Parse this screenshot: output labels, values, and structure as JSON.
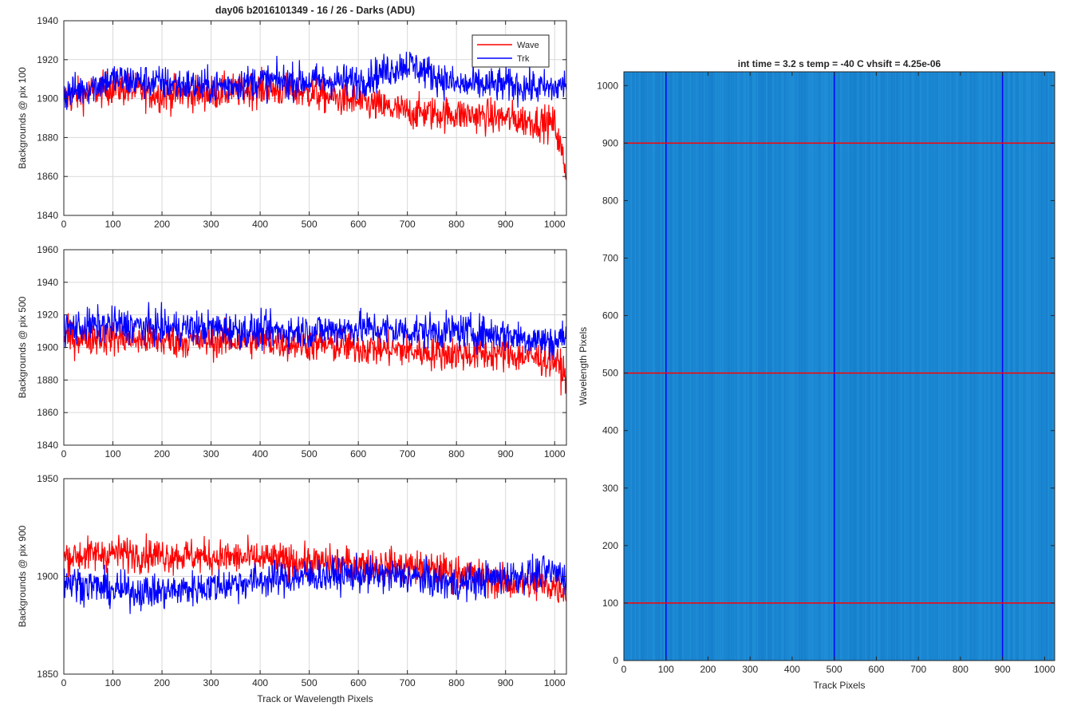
{
  "figure_title": "day06 b2016101349 - 16 / 26 - Darks (ADU)",
  "chart_data": [
    {
      "type": "line",
      "ylabel": "Backgrounds @ pix 100",
      "xlabel": "",
      "xlim": [
        0,
        1024
      ],
      "ylim": [
        1840,
        1940
      ],
      "xticks": [
        0,
        100,
        200,
        300,
        400,
        500,
        600,
        700,
        800,
        900,
        1000
      ],
      "yticks": [
        1840,
        1860,
        1880,
        1900,
        1920,
        1940
      ],
      "grid": true,
      "legend": {
        "placement": "top-right",
        "entries": [
          "Wave",
          "Trk"
        ]
      },
      "series": [
        {
          "name": "Wave",
          "color": "#ff0000",
          "x": [
            0,
            100,
            200,
            300,
            400,
            500,
            600,
            700,
            800,
            900,
            1000,
            1024
          ],
          "values": [
            1900,
            1906,
            1902,
            1903,
            1905,
            1903,
            1898,
            1893,
            1892,
            1890,
            1887,
            1862
          ]
        },
        {
          "name": "Trk",
          "color": "#0000ff",
          "x": [
            0,
            100,
            200,
            300,
            400,
            500,
            600,
            700,
            800,
            900,
            1000,
            1024
          ],
          "values": [
            1902,
            1910,
            1908,
            1906,
            1909,
            1909,
            1909,
            1918,
            1907,
            1907,
            1905,
            1908
          ]
        }
      ]
    },
    {
      "type": "line",
      "ylabel": "Backgrounds @ pix 500",
      "xlabel": "",
      "xlim": [
        0,
        1024
      ],
      "ylim": [
        1840,
        1960
      ],
      "xticks": [
        0,
        100,
        200,
        300,
        400,
        500,
        600,
        700,
        800,
        900,
        1000
      ],
      "yticks": [
        1840,
        1860,
        1880,
        1900,
        1920,
        1940,
        1960
      ],
      "grid": true,
      "series": [
        {
          "name": "Wave",
          "color": "#ff0000",
          "x": [
            0,
            100,
            200,
            300,
            400,
            500,
            600,
            700,
            800,
            900,
            1000,
            1024
          ],
          "values": [
            1906,
            1906,
            1904,
            1904,
            1904,
            1902,
            1900,
            1898,
            1896,
            1896,
            1892,
            1882
          ]
        },
        {
          "name": "Trk",
          "color": "#0000ff",
          "x": [
            0,
            100,
            200,
            300,
            400,
            500,
            600,
            700,
            800,
            900,
            1000,
            1024
          ],
          "values": [
            1912,
            1914,
            1912,
            1912,
            1910,
            1910,
            1912,
            1910,
            1910,
            1908,
            1903,
            1908
          ]
        }
      ]
    },
    {
      "type": "line",
      "ylabel": "Backgrounds @ pix 900",
      "xlabel": "Track or Wavelength Pixels",
      "xlim": [
        0,
        1024
      ],
      "ylim": [
        1850,
        1950
      ],
      "xticks": [
        0,
        100,
        200,
        300,
        400,
        500,
        600,
        700,
        800,
        900,
        1000
      ],
      "yticks": [
        1850,
        1900,
        1950
      ],
      "grid": true,
      "series": [
        {
          "name": "Wave",
          "color": "#ff0000",
          "x": [
            0,
            100,
            200,
            300,
            400,
            500,
            600,
            700,
            800,
            900,
            1000,
            1024
          ],
          "values": [
            1910,
            1912,
            1911,
            1910,
            1909,
            1907,
            1906,
            1905,
            1902,
            1897,
            1895,
            1893
          ]
        },
        {
          "name": "Trk",
          "color": "#0000ff",
          "x": [
            0,
            100,
            200,
            300,
            400,
            500,
            600,
            700,
            800,
            900,
            1000,
            1024
          ],
          "values": [
            1898,
            1893,
            1892,
            1895,
            1898,
            1900,
            1901,
            1900,
            1896,
            1900,
            1902,
            1900
          ]
        }
      ]
    },
    {
      "type": "heatmap",
      "title": "int time = 3.2 s   temp = -40 C   vhsift = 4.25e-06",
      "xlabel": "Track Pixels",
      "ylabel": "Wavelength Pixels",
      "xlim": [
        0,
        1024
      ],
      "ylim": [
        0,
        1024
      ],
      "xticks": [
        0,
        100,
        200,
        300,
        400,
        500,
        600,
        700,
        800,
        900,
        1000
      ],
      "yticks": [
        0,
        100,
        200,
        300,
        400,
        500,
        600,
        700,
        800,
        900,
        1000
      ],
      "colormap_base": "#1a86d2",
      "vertical_lines": {
        "x": [
          100,
          500,
          900
        ],
        "color": "#0000ff"
      },
      "horizontal_lines": {
        "y": [
          100,
          500,
          900
        ],
        "color": "#ff0000"
      }
    }
  ]
}
